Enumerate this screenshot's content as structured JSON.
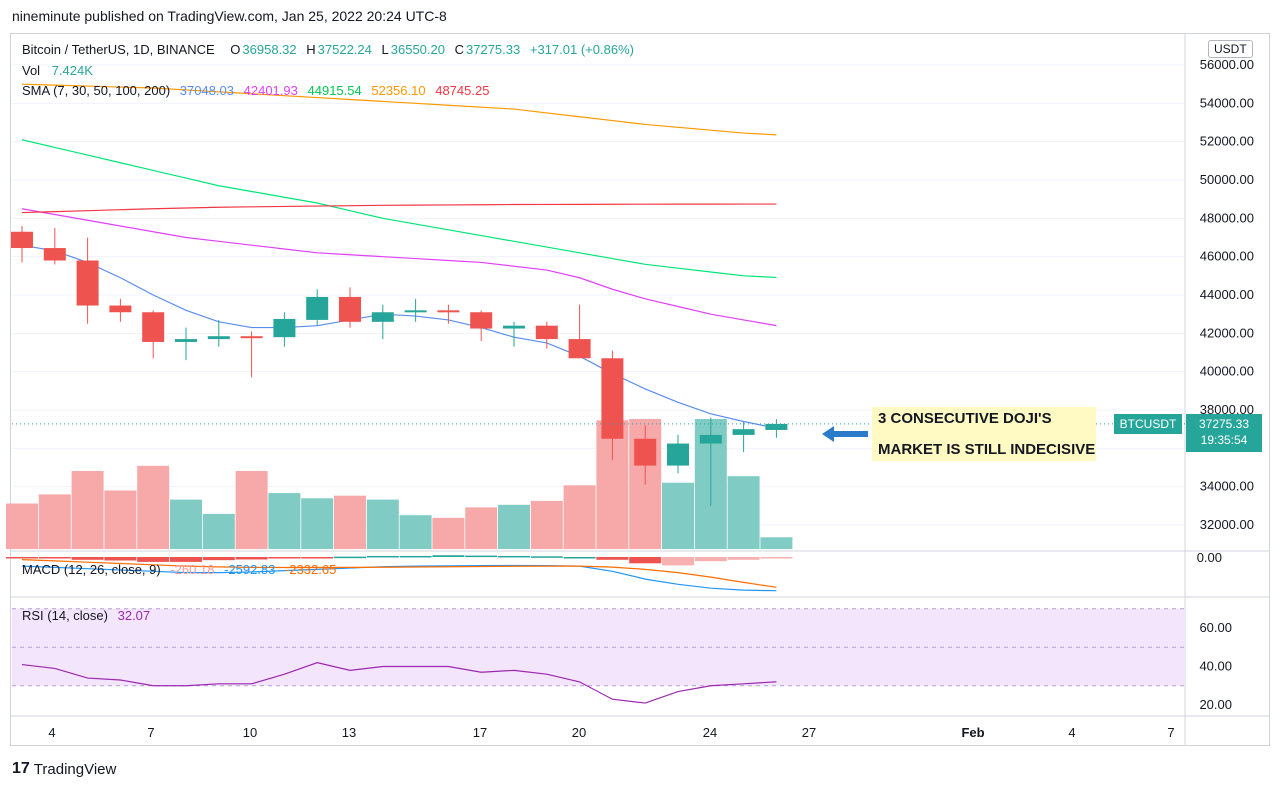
{
  "header": {
    "published_text": "nineminute published on TradingView.com, Jan 25, 2022 20:24 UTC-8"
  },
  "legend": {
    "symbol": "Bitcoin / TetherUS, 1D, BINANCE",
    "ohlc": {
      "o_label": "O",
      "o": "36958.32",
      "h_label": "H",
      "h": "37522.24",
      "l_label": "L",
      "l": "36550.20",
      "c_label": "C",
      "c": "37275.33",
      "change": "+317.01 (+0.86%)"
    },
    "vol_label": "Vol",
    "vol_value": "7.424K",
    "sma_label": "SMA (7, 30, 50, 100, 200)",
    "sma_values": [
      "37048.03",
      "42401.93",
      "44915.54",
      "52356.10",
      "48745.25"
    ],
    "macd_label": "MACD (12, 26, close, 9)",
    "macd_values": [
      "-260.18",
      "-2592.83",
      "-2332.65"
    ],
    "rsi_label": "RSI (14, close)",
    "rsi_value": "32.07"
  },
  "currency_badge": "USDT",
  "price_tag": {
    "symbol": "BTCUSDT",
    "price": "37275.33",
    "countdown": "19:35:54"
  },
  "annotation": {
    "line1": "3 CONSECUTIVE DOJI'S",
    "line2": "MARKET IS STILL INDECISIVE"
  },
  "footer": {
    "brand": "TradingView",
    "logo": "17"
  },
  "colors": {
    "up": "#26a69a",
    "down": "#ef5350",
    "sma7": "#5b8def",
    "sma30": "#e040fb",
    "sma50": "#00e676",
    "sma100": "#ff9800",
    "sma200": "#f23645",
    "rsi": "#9c27b0"
  },
  "chart_data": {
    "type": "candlestick",
    "price_axis_ticks": [
      "56000.00",
      "54000.00",
      "52000.00",
      "50000.00",
      "48000.00",
      "46000.00",
      "44000.00",
      "42000.00",
      "40000.00",
      "38000.00",
      "36000.00",
      "34000.00",
      "32000.00"
    ],
    "macd_axis_ticks": [
      "0.00"
    ],
    "rsi_axis_ticks": [
      "60.00",
      "40.00",
      "20.00"
    ],
    "x_tick_labels": [
      "4",
      "7",
      "10",
      "13",
      "17",
      "20",
      "24",
      "27",
      "Feb",
      "4",
      "7"
    ],
    "candles": [
      {
        "o": 47300,
        "h": 47600,
        "l": 45700,
        "c": 46450
      },
      {
        "o": 46450,
        "h": 47500,
        "l": 45600,
        "c": 45800
      },
      {
        "o": 45800,
        "h": 47000,
        "l": 42500,
        "c": 43450
      },
      {
        "o": 43450,
        "h": 43800,
        "l": 42600,
        "c": 43100
      },
      {
        "o": 43100,
        "h": 43200,
        "l": 40700,
        "c": 41550
      },
      {
        "o": 41550,
        "h": 42300,
        "l": 40600,
        "c": 41700
      },
      {
        "o": 41700,
        "h": 42700,
        "l": 41300,
        "c": 41850
      },
      {
        "o": 41850,
        "h": 42100,
        "l": 39700,
        "c": 41800
      },
      {
        "o": 41800,
        "h": 43100,
        "l": 41300,
        "c": 42750
      },
      {
        "o": 42700,
        "h": 44300,
        "l": 42400,
        "c": 43900
      },
      {
        "o": 43900,
        "h": 44400,
        "l": 42300,
        "c": 42600
      },
      {
        "o": 42600,
        "h": 43500,
        "l": 41700,
        "c": 43100
      },
      {
        "o": 43100,
        "h": 43800,
        "l": 42600,
        "c": 43200
      },
      {
        "o": 43200,
        "h": 43500,
        "l": 42500,
        "c": 43100
      },
      {
        "o": 43100,
        "h": 43200,
        "l": 41600,
        "c": 42250
      },
      {
        "o": 42250,
        "h": 42600,
        "l": 41300,
        "c": 42400
      },
      {
        "o": 42400,
        "h": 42600,
        "l": 41200,
        "c": 41700
      },
      {
        "o": 41700,
        "h": 43500,
        "l": 40700,
        "c": 40700
      },
      {
        "o": 40700,
        "h": 41100,
        "l": 35400,
        "c": 36500
      },
      {
        "o": 36500,
        "h": 37200,
        "l": 34100,
        "c": 35100
      },
      {
        "o": 35100,
        "h": 36700,
        "l": 34700,
        "c": 36250
      },
      {
        "o": 36250,
        "h": 37600,
        "l": 33000,
        "c": 36700
      },
      {
        "o": 36700,
        "h": 37400,
        "l": 35800,
        "c": 37000
      },
      {
        "o": 36958.32,
        "h": 37522.24,
        "l": 36550.2,
        "c": 37275.33
      }
    ],
    "volumes": [
      35,
      42,
      60,
      45,
      64,
      38,
      27,
      60,
      43,
      39,
      41,
      38,
      26,
      24,
      32,
      34,
      37,
      49,
      99,
      100,
      51,
      100,
      56,
      9
    ],
    "macd_hist": [
      -2,
      -4,
      -8,
      -10,
      -14,
      -14,
      -9,
      -7,
      -3,
      -2,
      1,
      3,
      3,
      5,
      4,
      3,
      2,
      0,
      -8,
      -18,
      -24,
      -12,
      -8,
      -4
    ],
    "sma7": [
      46600,
      46300,
      45700,
      44900,
      44000,
      43200,
      42600,
      42300,
      42300,
      42400,
      42700,
      43000,
      42900,
      42700,
      42300,
      41800,
      41500,
      40800,
      39900,
      39100,
      38400,
      37800,
      37400,
      37048
    ],
    "sma30": [
      48500,
      48200,
      47900,
      47600,
      47300,
      47000,
      46800,
      46600,
      46400,
      46200,
      46100,
      46000,
      45900,
      45800,
      45700,
      45500,
      45300,
      44900,
      44300,
      43800,
      43400,
      43000,
      42700,
      42402
    ],
    "sma50": [
      52100,
      51700,
      51300,
      50900,
      50500,
      50100,
      49700,
      49400,
      49100,
      48800,
      48400,
      48000,
      47700,
      47400,
      47100,
      46800,
      46500,
      46200,
      45900,
      45600,
      45400,
      45200,
      45000,
      44916
    ],
    "sma100": [
      55000,
      54950,
      54900,
      54850,
      54800,
      54700,
      54600,
      54500,
      54400,
      54300,
      54200,
      54100,
      54000,
      53900,
      53800,
      53700,
      53500,
      53300,
      53100,
      52900,
      52750,
      52600,
      52450,
      52356
    ],
    "sma200": [
      48300,
      48350,
      48400,
      48450,
      48500,
      48540,
      48580,
      48600,
      48620,
      48640,
      48660,
      48680,
      48690,
      48700,
      48710,
      48720,
      48725,
      48730,
      48735,
      48738,
      48740,
      48742,
      48744,
      48745
    ],
    "macd_line": [
      -700,
      -800,
      -900,
      -1000,
      -1100,
      -1200,
      -1200,
      -1150,
      -1050,
      -950,
      -850,
      -750,
      -700,
      -680,
      -660,
      -650,
      -660,
      -700,
      -1100,
      -1700,
      -2100,
      -2400,
      -2550,
      -2593
    ],
    "signal_line": [
      -200,
      -300,
      -400,
      -500,
      -600,
      -700,
      -760,
      -800,
      -810,
      -810,
      -800,
      -790,
      -770,
      -750,
      -730,
      -710,
      -700,
      -700,
      -780,
      -950,
      -1200,
      -1550,
      -1950,
      -2333
    ],
    "rsi": [
      41,
      39,
      34,
      33,
      30,
      30,
      31,
      31,
      36,
      42,
      38,
      40,
      40,
      40,
      37,
      38,
      36,
      32,
      23,
      21,
      27,
      30,
      31,
      32.07
    ],
    "rsi_band": [
      30,
      70
    ],
    "y_range": [
      30800,
      57200
    ]
  }
}
